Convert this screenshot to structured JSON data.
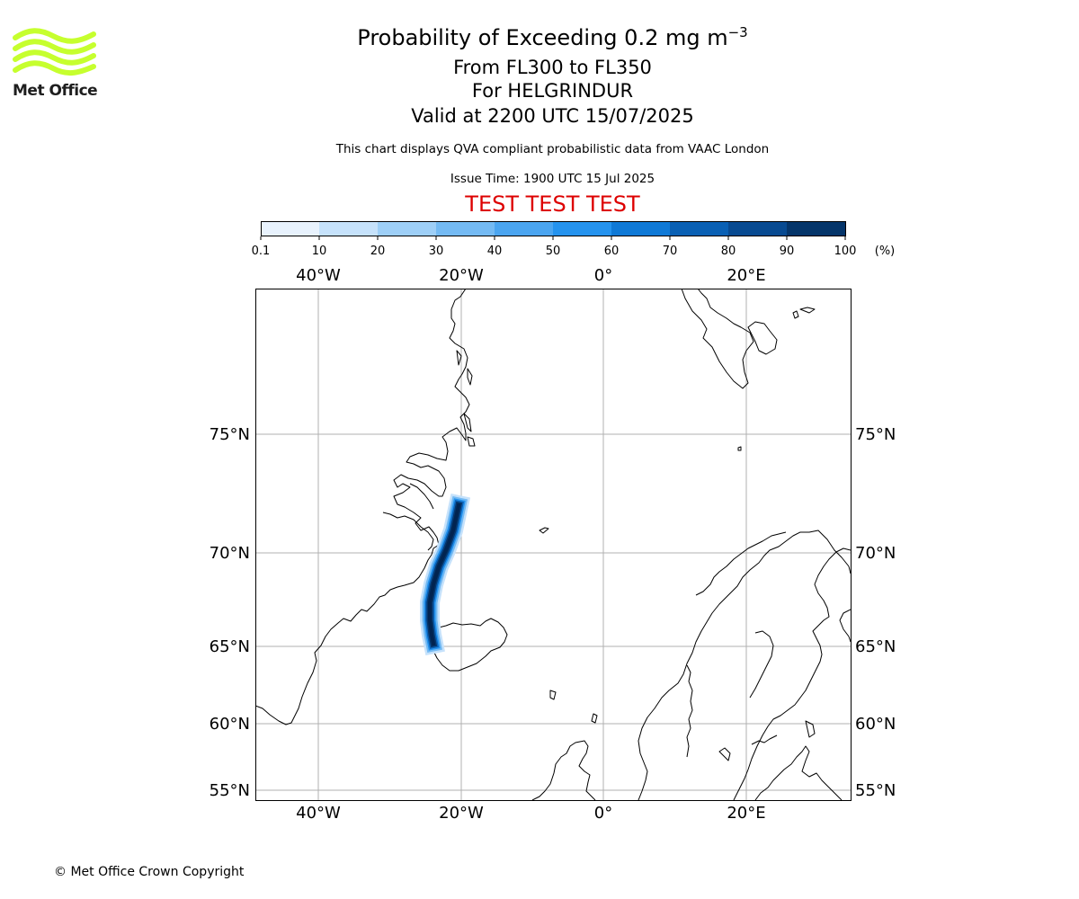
{
  "header": {
    "title_main": "Probability of Exceeding 0.2 mg m",
    "title_exp": "−3",
    "subtitle_1": "From FL300 to FL350",
    "subtitle_2": "For HELGRINDUR",
    "subtitle_3": "Valid at 2200 UTC 15/07/2025",
    "description": "This chart displays QVA compliant probabilistic data from VAAC London",
    "issue_time": "Issue Time: 1900 UTC 15 Jul 2025",
    "test_banner": "TEST TEST TEST"
  },
  "logo": {
    "text": "Met Office",
    "color": "#c6ff2e"
  },
  "colorbar": {
    "ticks": [
      "0.1",
      "10",
      "20",
      "30",
      "40",
      "50",
      "60",
      "70",
      "80",
      "90",
      "100"
    ],
    "unit": "(%)",
    "colors": [
      "#e8f2fd",
      "#c6e2fb",
      "#9ecff7",
      "#74baf3",
      "#4ba5f0",
      "#2593ee",
      "#0f79d6",
      "#0a60b4",
      "#084a91",
      "#05356a",
      "#022450"
    ]
  },
  "map": {
    "top_lon_labels": [
      "40°W",
      "20°W",
      "0°",
      "20°E"
    ],
    "bottom_lon_labels": [
      "40°W",
      "20°W",
      "0°",
      "20°E"
    ],
    "left_lat_labels": [
      "75°N",
      "70°N",
      "65°N",
      "60°N",
      "55°N"
    ],
    "right_lat_labels": [
      "75°N",
      "70°N",
      "65°N",
      "60°N",
      "55°N"
    ],
    "plume_probabilities_percent": [
      10,
      30,
      50,
      70,
      90,
      100
    ]
  },
  "footer": {
    "copyright": "© Met Office Crown Copyright"
  }
}
